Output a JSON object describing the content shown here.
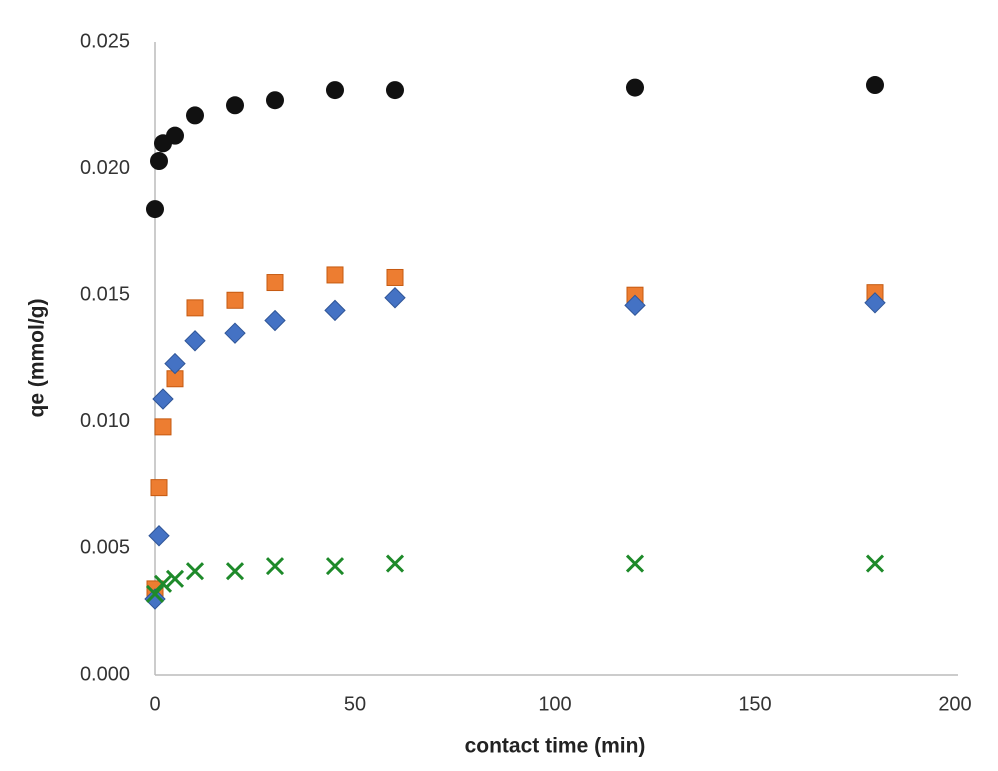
{
  "chart_data": {
    "type": "scatter",
    "x_label": "contact time  (min)",
    "y_label": "qe (mmol/g)",
    "xlim": [
      0,
      200
    ],
    "xticks": [
      0,
      50,
      100,
      150,
      200
    ],
    "ylim": [
      0,
      0.025
    ],
    "yticks": [
      {
        "value": 0,
        "label": "0.000"
      },
      0.005,
      {
        "value": 0.01,
        "label": "0.010"
      },
      0.015,
      {
        "value": 0.02,
        "label": "0.020"
      },
      0.025
    ],
    "grid": false,
    "series": [
      {
        "color": "#111111",
        "marker": "circle",
        "x": [
          0,
          1,
          2,
          5,
          10,
          20,
          30,
          45,
          60,
          120,
          180
        ],
        "values": [
          0.0184,
          0.0203,
          0.021,
          0.0213,
          0.0221,
          0.0225,
          0.0227,
          0.0231,
          0.0231,
          0.0232,
          0.0233
        ]
      },
      {
        "color": "#ed7d31",
        "marker": "square",
        "x": [
          0,
          1,
          2,
          5,
          10,
          20,
          30,
          45,
          60,
          120,
          180
        ],
        "values": [
          0.0034,
          0.0074,
          0.0098,
          0.0117,
          0.0145,
          0.0148,
          0.0155,
          0.0158,
          0.0157,
          0.015,
          0.0151
        ]
      },
      {
        "color": "#4472c4",
        "marker": "diamond",
        "x": [
          0,
          1,
          2,
          5,
          10,
          20,
          30,
          45,
          60,
          120,
          180
        ],
        "values": [
          0.003,
          0.0055,
          0.0109,
          0.0123,
          0.0132,
          0.0135,
          0.014,
          0.0144,
          0.0149,
          0.0146,
          0.0147
        ]
      },
      {
        "color": "#1e8a2a",
        "marker": "x",
        "x": [
          0,
          2,
          5,
          10,
          20,
          30,
          45,
          60,
          120,
          180
        ],
        "values": [
          0.0032,
          0.0036,
          0.0038,
          0.0041,
          0.0041,
          0.0043,
          0.0043,
          0.0044,
          0.0044,
          0.0044
        ]
      }
    ]
  }
}
